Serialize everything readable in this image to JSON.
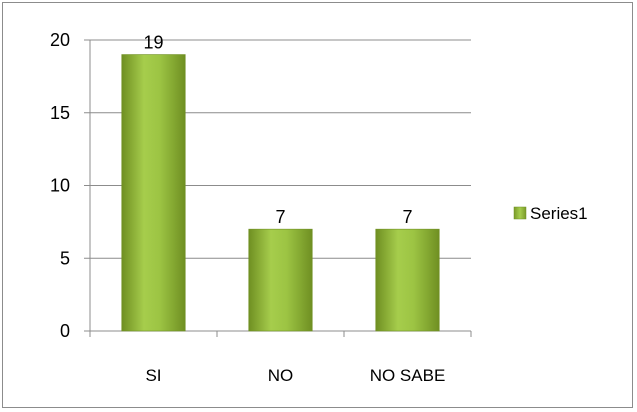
{
  "chart_data": {
    "type": "bar",
    "categories": [
      "SI",
      "NO",
      "NO SABE"
    ],
    "series": [
      {
        "name": "Series1",
        "values": [
          19,
          7,
          7
        ],
        "color": "#8db33a"
      }
    ],
    "data_labels": [
      "19",
      "7",
      "7"
    ],
    "ylim": [
      0,
      20
    ],
    "yticks": [
      0,
      5,
      10,
      15,
      20
    ],
    "ytick_labels": [
      "0",
      "5",
      "10",
      "15",
      "20"
    ],
    "grid": true,
    "legend_position": "right",
    "title": "",
    "xlabel": "",
    "ylabel": ""
  }
}
